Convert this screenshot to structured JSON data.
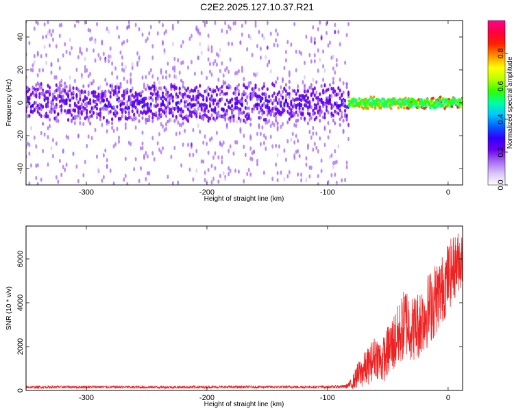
{
  "title": "C2E2.2025.127.10.37.R21",
  "colors": {
    "snr_line": "#ee2222",
    "frame": "#000000"
  },
  "chart_data": [
    {
      "type": "heatmap",
      "title": "C2E2.2025.127.10.37.R21",
      "xlabel": "Height of straight line (km)",
      "ylabel": "Frequency (Hz)",
      "xlim": [
        -350,
        12
      ],
      "ylim": [
        -50,
        50
      ],
      "xticks": [
        -300,
        -200,
        -100,
        0
      ],
      "xtick_labels": [
        "-300",
        "-200",
        "-100",
        "0"
      ],
      "yticks": [
        -40,
        -20,
        0,
        20,
        40
      ],
      "ytick_labels": [
        "-40",
        "-20",
        "0",
        "20",
        "40"
      ],
      "colorbar": {
        "label": "Normalized spectral amplitude",
        "range": [
          0,
          1
        ],
        "ticks": [
          0,
          0.2,
          0.4,
          0.6,
          0.8
        ],
        "tick_labels": [
          "0.0",
          "0.2",
          "0.4",
          "0.6",
          "0.8"
        ],
        "colormap": [
          "#ffffff",
          "#d8c4f8",
          "#a56af0",
          "#6a00ee",
          "#3000ff",
          "#0060ff",
          "#00c8ff",
          "#00ffa0",
          "#30ff00",
          "#b8ff00",
          "#ffff00",
          "#ff9000",
          "#ff2000",
          "#ff0040",
          "#ff0090"
        ]
      },
      "description_regions": [
        {
          "x_range": [
            -350,
            -82
          ],
          "freq_core_halfwidth": 10,
          "amplitude_core": [
            0.15,
            0.3
          ],
          "freq_spread": [
            -50,
            50
          ],
          "amplitude_spread": [
            0.02,
            0.1
          ]
        },
        {
          "x_range": [
            -82,
            12
          ],
          "freq_core_halfwidth": 3,
          "amplitude_core": [
            0.5,
            0.9
          ],
          "center_freq": 0
        }
      ],
      "grid": false
    },
    {
      "type": "line",
      "xlabel": "Height of straight line (km)",
      "ylabel": "SNR (10 * v/v)",
      "xlim": [
        -350,
        12
      ],
      "ylim": [
        0,
        7500
      ],
      "xticks": [
        -300,
        -200,
        -100,
        0
      ],
      "xtick_labels": [
        "-300",
        "-200",
        "-100",
        "0"
      ],
      "yticks": [
        0,
        2000,
        4000,
        6000
      ],
      "ytick_labels": [
        "0",
        "2000",
        "4000",
        "6000"
      ],
      "grid": false,
      "series": [
        {
          "x": [
            -350,
            -300,
            -250,
            -200,
            -150,
            -100,
            -85,
            -80,
            -75,
            -70,
            -65,
            -60,
            -55,
            -50,
            -45,
            -40,
            -35,
            -30,
            -25,
            -20,
            -15,
            -10,
            -5,
            0,
            5,
            10
          ],
          "y": [
            150,
            160,
            150,
            155,
            160,
            160,
            180,
            300,
            700,
            900,
            1200,
            1600,
            1300,
            1800,
            2200,
            2600,
            3200,
            2800,
            3000,
            3400,
            3800,
            4200,
            4600,
            5200,
            5600,
            6000
          ],
          "noise_amplitude": [
            60,
            60,
            60,
            60,
            60,
            60,
            80,
            250,
            600,
            800,
            900,
            1000,
            1000,
            1200,
            1400,
            1500,
            1700,
            1500,
            1600,
            1700,
            1700,
            1700,
            1600,
            1600,
            1500,
            1400
          ]
        }
      ]
    }
  ]
}
